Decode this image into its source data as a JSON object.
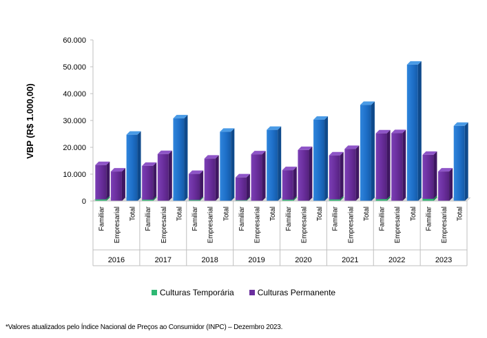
{
  "chart_data": {
    "type": "bar",
    "ylabel": "VBP (R$ 1.000,00)",
    "ylim": [
      0,
      60000
    ],
    "yticks": [
      "0",
      "10.000",
      "20.000",
      "30.000",
      "40.000",
      "50.000",
      "60.000"
    ],
    "yticks_values": [
      0,
      10000,
      20000,
      30000,
      40000,
      50000,
      60000
    ],
    "years": [
      "2016",
      "2017",
      "2018",
      "2019",
      "2020",
      "2021",
      "2022",
      "2023"
    ],
    "sub_categories": [
      "Familiar",
      "Empresarial",
      "Total"
    ],
    "series": [
      {
        "name": "Culturas Temporária",
        "color": "#2EB872",
        "values": [
          [
            600,
            0
          ],
          [
            500,
            0
          ],
          [
            400,
            0
          ],
          [
            300,
            0
          ],
          [
            500,
            0
          ],
          [
            600,
            0
          ],
          [
            700,
            0
          ],
          [
            800,
            0
          ]
        ]
      },
      {
        "name": "Culturas Permanente",
        "color": "#6B2F9E",
        "values": [
          [
            12800,
            11000
          ],
          [
            12600,
            17500
          ],
          [
            9700,
            15800
          ],
          [
            8500,
            17400
          ],
          [
            11000,
            19000
          ],
          [
            16400,
            19400
          ],
          [
            24500,
            25300
          ],
          [
            16400,
            11000
          ]
        ]
      }
    ],
    "totals": [
      24700,
      30800,
      25800,
      26500,
      30300,
      35800,
      50800,
      28000
    ],
    "total_color": "#1E6FC8",
    "legend": [
      "Culturas Temporária",
      "Culturas Permanente"
    ],
    "legend_position": "bottom"
  },
  "footnote": "*Valores atualizados pelo Índice Nacional de Preços ao Consumidor (INPC) – Dezembro 2023."
}
